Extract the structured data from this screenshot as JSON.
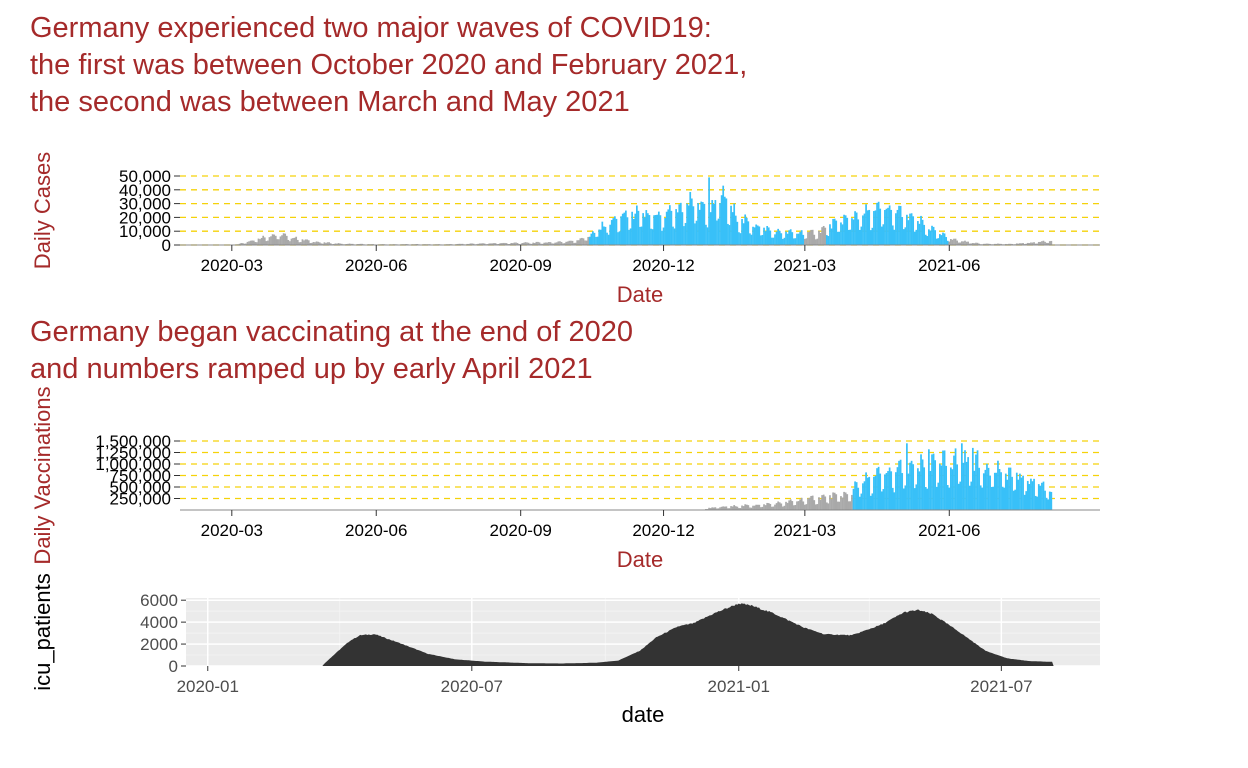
{
  "chart_data": [
    {
      "type": "bar",
      "title": "Germany experienced two major waves of COVID19:\nthe first was between October 2020 and February 2021,\nthe second was between March and May 2021",
      "xlabel": "Date",
      "ylabel": "Daily Cases",
      "y_ticks": [
        "0",
        "10,000",
        "20,000",
        "30,000",
        "40,000",
        "50,000"
      ],
      "ylim": [
        0,
        50000
      ],
      "x_ticks": [
        "2020-03",
        "2020-06",
        "2020-09",
        "2020-12",
        "2021-03",
        "2021-06"
      ],
      "xlim": [
        "2020-01-28",
        "2021-09-05"
      ],
      "gridlines": "dashed gold",
      "highlight_color": "#38c0f8",
      "base_color": "#a9a9a9",
      "highlight_ranges": [
        [
          "2020-10-15",
          "2021-02-28"
        ],
        [
          "2021-03-15",
          "2021-05-31"
        ]
      ],
      "series": [
        {
          "values": [
            [
              "2020-01-28",
              0
            ],
            [
              "2020-02-24",
              20
            ],
            [
              "2020-03-05",
              600
            ],
            [
              "2020-03-15",
              3500
            ],
            [
              "2020-03-25",
              6500
            ],
            [
              "2020-04-02",
              7000
            ],
            [
              "2020-04-12",
              4200
            ],
            [
              "2020-04-25",
              2000
            ],
            [
              "2020-05-10",
              900
            ],
            [
              "2020-06-01",
              450
            ],
            [
              "2020-06-20",
              550
            ],
            [
              "2020-07-15",
              500
            ],
            [
              "2020-08-10",
              1100
            ],
            [
              "2020-09-01",
              1500
            ],
            [
              "2020-09-20",
              1800
            ],
            [
              "2020-10-05",
              2800
            ],
            [
              "2020-10-15",
              6500
            ],
            [
              "2020-10-25",
              14000
            ],
            [
              "2020-11-05",
              20000
            ],
            [
              "2020-11-15",
              22000
            ],
            [
              "2020-11-28",
              19000
            ],
            [
              "2020-12-10",
              24000
            ],
            [
              "2020-12-18",
              30000
            ],
            [
              "2020-12-30",
              26000
            ],
            [
              "2021-01-08",
              33000
            ],
            [
              "2021-01-18",
              18000
            ],
            [
              "2021-01-28",
              14000
            ],
            [
              "2021-02-10",
              9000
            ],
            [
              "2021-02-25",
              8500
            ],
            [
              "2021-03-08",
              8500
            ],
            [
              "2021-03-20",
              15000
            ],
            [
              "2021-04-01",
              20000
            ],
            [
              "2021-04-12",
              23000
            ],
            [
              "2021-04-22",
              25000
            ],
            [
              "2021-05-01",
              22000
            ],
            [
              "2021-05-12",
              17000
            ],
            [
              "2021-05-25",
              8000
            ],
            [
              "2021-06-05",
              3500
            ],
            [
              "2021-06-20",
              1000
            ],
            [
              "2021-07-10",
              700
            ],
            [
              "2021-07-25",
              1800
            ],
            [
              "2021-08-05",
              3000
            ]
          ],
          "spikes": [
            [
              "2020-12-30",
              49000
            ],
            [
              "2021-01-08",
              43000
            ]
          ]
        }
      ]
    },
    {
      "type": "bar",
      "title": "Germany began vaccinating at the end of 2020\nand numbers ramped up by early April 2021",
      "xlabel": "Date",
      "ylabel": "Daily Vaccinations",
      "y_ticks": [
        "250,000",
        "500,000",
        "750,000",
        "1,000,000",
        "1,250,000",
        "1,500,000"
      ],
      "ylim": [
        0,
        1500000
      ],
      "x_ticks": [
        "2020-03",
        "2020-06",
        "2020-09",
        "2020-12",
        "2021-03",
        "2021-06"
      ],
      "xlim": [
        "2020-01-28",
        "2021-09-05"
      ],
      "gridlines": "dashed gold",
      "highlight_color": "#38c0f8",
      "base_color": "#a9a9a9",
      "highlight_ranges": [
        [
          "2021-04-01",
          "2021-08-31"
        ]
      ],
      "series": [
        {
          "values": [
            [
              "2020-12-27",
              0
            ],
            [
              "2020-12-28",
              40000
            ],
            [
              "2021-01-15",
              80000
            ],
            [
              "2021-02-01",
              110000
            ],
            [
              "2021-02-15",
              150000
            ],
            [
              "2021-03-01",
              220000
            ],
            [
              "2021-03-15",
              280000
            ],
            [
              "2021-03-31",
              330000
            ],
            [
              "2021-04-01",
              500000
            ],
            [
              "2021-04-15",
              700000
            ],
            [
              "2021-05-01",
              850000
            ],
            [
              "2021-05-15",
              900000
            ],
            [
              "2021-06-01",
              1000000
            ],
            [
              "2021-06-10",
              1050000
            ],
            [
              "2021-06-25",
              900000
            ],
            [
              "2021-07-10",
              750000
            ],
            [
              "2021-07-25",
              600000
            ],
            [
              "2021-08-05",
              400000
            ]
          ],
          "spikes": [
            [
              "2021-05-05",
              1450000
            ],
            [
              "2021-06-09",
              1450000
            ],
            [
              "2021-05-19",
              1320000
            ],
            [
              "2021-06-16",
              1350000
            ]
          ]
        }
      ]
    },
    {
      "type": "area",
      "xlabel": "date",
      "ylabel": "icu_patients",
      "y_ticks": [
        "0",
        "2000",
        "4000",
        "6000"
      ],
      "ylim": [
        0,
        6200
      ],
      "x_ticks": [
        "2020-01",
        "2020-07",
        "2021-01",
        "2021-07"
      ],
      "xlim": [
        "2019-12-17",
        "2021-09-07"
      ],
      "panel": "grey with white grid",
      "fill": "#333333",
      "series": [
        {
          "values": [
            [
              "2020-03-20",
              0
            ],
            [
              "2020-03-22",
              300
            ],
            [
              "2020-04-01",
              1500
            ],
            [
              "2020-04-08",
              2300
            ],
            [
              "2020-04-15",
              2800
            ],
            [
              "2020-04-25",
              2900
            ],
            [
              "2020-05-10",
              2200
            ],
            [
              "2020-06-01",
              1100
            ],
            [
              "2020-06-20",
              600
            ],
            [
              "2020-07-10",
              400
            ],
            [
              "2020-08-10",
              250
            ],
            [
              "2020-09-01",
              230
            ],
            [
              "2020-09-25",
              300
            ],
            [
              "2020-10-10",
              500
            ],
            [
              "2020-10-25",
              1400
            ],
            [
              "2020-11-05",
              2600
            ],
            [
              "2020-11-20",
              3600
            ],
            [
              "2020-12-01",
              3900
            ],
            [
              "2020-12-15",
              4800
            ],
            [
              "2021-01-01",
              5700
            ],
            [
              "2021-01-10",
              5500
            ],
            [
              "2021-01-25",
              4800
            ],
            [
              "2021-02-15",
              3500
            ],
            [
              "2021-03-01",
              2900
            ],
            [
              "2021-03-20",
              2800
            ],
            [
              "2021-04-10",
              3800
            ],
            [
              "2021-04-25",
              4900
            ],
            [
              "2021-05-05",
              5100
            ],
            [
              "2021-05-15",
              4700
            ],
            [
              "2021-06-01",
              3200
            ],
            [
              "2021-06-20",
              1400
            ],
            [
              "2021-07-05",
              700
            ],
            [
              "2021-07-20",
              450
            ],
            [
              "2021-08-05",
              380
            ],
            [
              "2021-08-06",
              0
            ]
          ]
        }
      ]
    }
  ]
}
